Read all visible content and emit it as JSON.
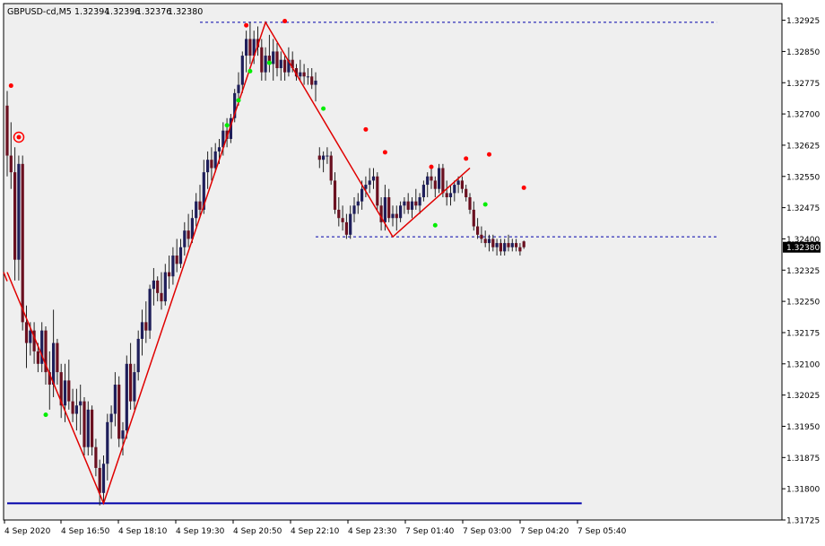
{
  "header": {
    "symbol": "GBPUSD-cd,M5",
    "open": "1.32394",
    "high": "1.32396",
    "low": "1.32376",
    "close": "1.32380"
  },
  "colors": {
    "background": "#ffffff",
    "plot_background": "#efefef",
    "bull_body": "#1e1e5a",
    "bear_body": "#6a1020",
    "wick": "#222222",
    "zigzag": "#e00000",
    "fractal_up": "#ff0000",
    "fractal_down": "#00ee00",
    "level_line": "#0000aa",
    "price_label_bg": "#000000",
    "price_label_text": "#ffffff"
  },
  "chart_data": {
    "type": "candlestick",
    "title": "GBPUSD-cd,M5",
    "ylim": [
      1.31725,
      1.32965
    ],
    "y_ticks": [
      "1.32925",
      "1.32850",
      "1.32775",
      "1.32700",
      "1.32625",
      "1.32550",
      "1.32475",
      "1.32400",
      "1.32325",
      "1.32250",
      "1.32175",
      "1.32100",
      "1.32025",
      "1.31950",
      "1.31875",
      "1.31800",
      "1.31725"
    ],
    "x_ticks": [
      "4 Sep 2020",
      "4 Sep 16:50",
      "4 Sep 18:10",
      "4 Sep 19:30",
      "4 Sep 20:50",
      "4 Sep 22:10",
      "4 Sep 23:30",
      "7 Sep 01:40",
      "7 Sep 03:00",
      "7 Sep 04:20",
      "7 Sep 05:40"
    ],
    "current_price": "1.32380",
    "grid": false,
    "candles": [
      [
        1.3272,
        1.32755,
        1.3255,
        1.326
      ],
      [
        1.326,
        1.3268,
        1.3252,
        1.3256
      ],
      [
        1.3256,
        1.3262,
        1.323,
        1.3235
      ],
      [
        1.3235,
        1.326,
        1.323,
        1.3258
      ],
      [
        1.3258,
        1.326,
        1.3218,
        1.322
      ],
      [
        1.322,
        1.3224,
        1.3209,
        1.3215
      ],
      [
        1.3215,
        1.322,
        1.3212,
        1.3218
      ],
      [
        1.3218,
        1.322,
        1.321,
        1.3213
      ],
      [
        1.3213,
        1.3215,
        1.3208,
        1.321
      ],
      [
        1.321,
        1.322,
        1.3208,
        1.3218
      ],
      [
        1.3218,
        1.3219,
        1.3205,
        1.3208
      ],
      [
        1.3208,
        1.3213,
        1.3199,
        1.3205
      ],
      [
        1.3205,
        1.3223,
        1.3202,
        1.3215
      ],
      [
        1.3215,
        1.3216,
        1.3205,
        1.3208
      ],
      [
        1.3208,
        1.321,
        1.3197,
        1.32
      ],
      [
        1.32,
        1.321,
        1.3196,
        1.3206
      ],
      [
        1.3206,
        1.3211,
        1.3199,
        1.3201
      ],
      [
        1.3201,
        1.3204,
        1.3196,
        1.3198
      ],
      [
        1.3198,
        1.3204,
        1.3194,
        1.32
      ],
      [
        1.32,
        1.3205,
        1.3193,
        1.3201
      ],
      [
        1.3201,
        1.3202,
        1.3188,
        1.319
      ],
      [
        1.319,
        1.3201,
        1.3188,
        1.3199
      ],
      [
        1.3199,
        1.32,
        1.3188,
        1.319
      ],
      [
        1.319,
        1.3192,
        1.3183,
        1.3185
      ],
      [
        1.3185,
        1.3187,
        1.3176,
        1.3179
      ],
      [
        1.3179,
        1.3188,
        1.3177,
        1.3186
      ],
      [
        1.3186,
        1.3198,
        1.3182,
        1.3196
      ],
      [
        1.3196,
        1.32,
        1.3192,
        1.3198
      ],
      [
        1.3198,
        1.3208,
        1.3195,
        1.3205
      ],
      [
        1.3205,
        1.3207,
        1.319,
        1.3192
      ],
      [
        1.3192,
        1.3196,
        1.3188,
        1.3194
      ],
      [
        1.3194,
        1.3212,
        1.3192,
        1.321
      ],
      [
        1.321,
        1.3215,
        1.3199,
        1.3201
      ],
      [
        1.3201,
        1.321,
        1.3199,
        1.3208
      ],
      [
        1.3208,
        1.3218,
        1.3206,
        1.3216
      ],
      [
        1.3216,
        1.3223,
        1.3212,
        1.322
      ],
      [
        1.322,
        1.3225,
        1.3215,
        1.3218
      ],
      [
        1.3218,
        1.3229,
        1.3216,
        1.3228
      ],
      [
        1.3228,
        1.3233,
        1.3224,
        1.323
      ],
      [
        1.323,
        1.3231,
        1.3225,
        1.3227
      ],
      [
        1.3227,
        1.3232,
        1.3223,
        1.3225
      ],
      [
        1.3225,
        1.3234,
        1.3224,
        1.3232
      ],
      [
        1.3232,
        1.3236,
        1.3228,
        1.3231
      ],
      [
        1.3231,
        1.3238,
        1.3229,
        1.3236
      ],
      [
        1.3236,
        1.324,
        1.3232,
        1.3234
      ],
      [
        1.3234,
        1.324,
        1.3233,
        1.3238
      ],
      [
        1.3238,
        1.3244,
        1.3236,
        1.3242
      ],
      [
        1.3242,
        1.3246,
        1.3238,
        1.324
      ],
      [
        1.324,
        1.3247,
        1.3239,
        1.3245
      ],
      [
        1.3245,
        1.3251,
        1.3243,
        1.3249
      ],
      [
        1.3249,
        1.3253,
        1.3245,
        1.3247
      ],
      [
        1.3247,
        1.3259,
        1.3246,
        1.3256
      ],
      [
        1.3256,
        1.3261,
        1.3252,
        1.3259
      ],
      [
        1.3259,
        1.3262,
        1.3254,
        1.3257
      ],
      [
        1.3257,
        1.3263,
        1.3256,
        1.3261
      ],
      [
        1.3261,
        1.3264,
        1.3258,
        1.3262
      ],
      [
        1.3262,
        1.3268,
        1.326,
        1.3266
      ],
      [
        1.3266,
        1.3269,
        1.3262,
        1.3264
      ],
      [
        1.3264,
        1.327,
        1.3263,
        1.3269
      ],
      [
        1.3269,
        1.3276,
        1.3268,
        1.3275
      ],
      [
        1.3275,
        1.328,
        1.3272,
        1.3277
      ],
      [
        1.3277,
        1.3285,
        1.3275,
        1.3284
      ],
      [
        1.3284,
        1.329,
        1.328,
        1.3288
      ],
      [
        1.3288,
        1.3292,
        1.3282,
        1.3284
      ],
      [
        1.3284,
        1.329,
        1.3282,
        1.3288
      ],
      [
        1.3288,
        1.3291,
        1.3284,
        1.3286
      ],
      [
        1.3286,
        1.3288,
        1.3278,
        1.328
      ],
      [
        1.328,
        1.3286,
        1.3278,
        1.3284
      ],
      [
        1.3284,
        1.3289,
        1.328,
        1.3282
      ],
      [
        1.3282,
        1.3288,
        1.3278,
        1.3285
      ],
      [
        1.3285,
        1.3287,
        1.3279,
        1.3281
      ],
      [
        1.3281,
        1.3285,
        1.3278,
        1.3283
      ],
      [
        1.3283,
        1.3284,
        1.3278,
        1.328
      ],
      [
        1.328,
        1.3286,
        1.3279,
        1.3283
      ],
      [
        1.3283,
        1.3285,
        1.328,
        1.3281
      ],
      [
        1.3281,
        1.3282,
        1.3278,
        1.3279
      ],
      [
        1.3279,
        1.3283,
        1.3278,
        1.328
      ],
      [
        1.328,
        1.3282,
        1.3277,
        1.3279
      ],
      [
        1.3279,
        1.3281,
        1.3277,
        1.3279
      ],
      [
        1.3279,
        1.3281,
        1.3276,
        1.3277
      ],
      [
        1.3277,
        1.328,
        1.3273,
        1.3278
      ],
      [
        1.326,
        1.3262,
        1.3257,
        1.3259
      ],
      [
        1.3259,
        1.3261,
        1.3256,
        1.326
      ],
      [
        1.326,
        1.3262,
        1.3258,
        1.326
      ],
      [
        1.326,
        1.3261,
        1.3253,
        1.3254
      ],
      [
        1.3254,
        1.3256,
        1.3246,
        1.3247
      ],
      [
        1.3247,
        1.325,
        1.3243,
        1.3245
      ],
      [
        1.3245,
        1.3248,
        1.3242,
        1.3244
      ],
      [
        1.3244,
        1.3246,
        1.324,
        1.3241
      ],
      [
        1.3241,
        1.3248,
        1.324,
        1.3246
      ],
      [
        1.3246,
        1.325,
        1.3244,
        1.3248
      ],
      [
        1.3248,
        1.3251,
        1.3246,
        1.3249
      ],
      [
        1.3249,
        1.3254,
        1.3247,
        1.3252
      ],
      [
        1.3252,
        1.3255,
        1.325,
        1.3253
      ],
      [
        1.3253,
        1.3257,
        1.3251,
        1.3254
      ],
      [
        1.3254,
        1.3257,
        1.3252,
        1.3255
      ],
      [
        1.3255,
        1.3256,
        1.3247,
        1.3248
      ],
      [
        1.3248,
        1.325,
        1.3242,
        1.3244
      ],
      [
        1.3244,
        1.3253,
        1.3242,
        1.325
      ],
      [
        1.325,
        1.3252,
        1.3244,
        1.3245
      ],
      [
        1.3245,
        1.3248,
        1.3243,
        1.3246
      ],
      [
        1.3246,
        1.3248,
        1.3242,
        1.3245
      ],
      [
        1.3245,
        1.3249,
        1.3244,
        1.3248
      ],
      [
        1.3248,
        1.325,
        1.3246,
        1.3249
      ],
      [
        1.3249,
        1.3251,
        1.3246,
        1.3247
      ],
      [
        1.3247,
        1.325,
        1.3245,
        1.3249
      ],
      [
        1.3249,
        1.3252,
        1.3247,
        1.3248
      ],
      [
        1.3248,
        1.3251,
        1.3246,
        1.325
      ],
      [
        1.325,
        1.3254,
        1.3249,
        1.3253
      ],
      [
        1.3253,
        1.3256,
        1.325,
        1.3255
      ],
      [
        1.3255,
        1.3257,
        1.3252,
        1.3254
      ],
      [
        1.3254,
        1.3255,
        1.325,
        1.3252
      ],
      [
        1.3252,
        1.3258,
        1.3251,
        1.3257
      ],
      [
        1.3257,
        1.3258,
        1.325,
        1.3251
      ],
      [
        1.3251,
        1.3254,
        1.3248,
        1.325
      ],
      [
        1.325,
        1.3253,
        1.3248,
        1.3251
      ],
      [
        1.3251,
        1.3254,
        1.3249,
        1.3253
      ],
      [
        1.3253,
        1.3255,
        1.3251,
        1.3254
      ],
      [
        1.3254,
        1.3255,
        1.3251,
        1.3252
      ],
      [
        1.3252,
        1.3253,
        1.3249,
        1.325
      ],
      [
        1.325,
        1.3251,
        1.3246,
        1.3247
      ],
      [
        1.3247,
        1.3249,
        1.3242,
        1.3243
      ],
      [
        1.3243,
        1.3245,
        1.324,
        1.3241
      ],
      [
        1.3241,
        1.3243,
        1.3239,
        1.324
      ],
      [
        1.324,
        1.3242,
        1.3238,
        1.3239
      ],
      [
        1.3239,
        1.3241,
        1.3237,
        1.324
      ],
      [
        1.324,
        1.3241,
        1.3237,
        1.3238
      ],
      [
        1.3238,
        1.324,
        1.3236,
        1.3239
      ],
      [
        1.3239,
        1.324,
        1.3236,
        1.3237
      ],
      [
        1.3237,
        1.324,
        1.3236,
        1.3239
      ],
      [
        1.3239,
        1.3241,
        1.3237,
        1.3238
      ],
      [
        1.3238,
        1.324,
        1.3237,
        1.3239
      ],
      [
        1.3239,
        1.324,
        1.3237,
        1.3238
      ],
      [
        1.3238,
        1.3239,
        1.3236,
        1.3237
      ],
      [
        1.32394,
        1.32396,
        1.32376,
        1.3238
      ]
    ],
    "zigzag": [
      [
        0,
        1.3232
      ],
      [
        25,
        1.31765
      ],
      [
        67,
        1.3292
      ],
      [
        100,
        1.32405
      ],
      [
        120,
        1.3257
      ]
    ],
    "fractals_up": [
      [
        1,
        1.32755
      ],
      [
        62,
        1.329
      ],
      [
        72,
        1.3291
      ],
      [
        93,
        1.3265
      ],
      [
        98,
        1.32595
      ],
      [
        110,
        1.3256
      ],
      [
        119,
        1.3258
      ],
      [
        125,
        1.3259
      ],
      [
        134,
        1.3251
      ]
    ],
    "fractals_down": [
      [
        10,
        1.31995
      ],
      [
        57,
        1.3269
      ],
      [
        60,
        1.3275
      ],
      [
        63,
        1.3282
      ],
      [
        68,
        1.3284
      ],
      [
        82,
        1.3273
      ],
      [
        111,
        1.3245
      ],
      [
        124,
        1.325
      ]
    ],
    "levels": [
      {
        "value": 1.3292,
        "style": "dashed",
        "from": 50,
        "to": 184
      },
      {
        "value": 1.32405,
        "style": "dashed",
        "from": 80,
        "to": 184
      },
      {
        "value": 1.31765,
        "style": "solid",
        "from": 0,
        "to": 149
      }
    ]
  }
}
